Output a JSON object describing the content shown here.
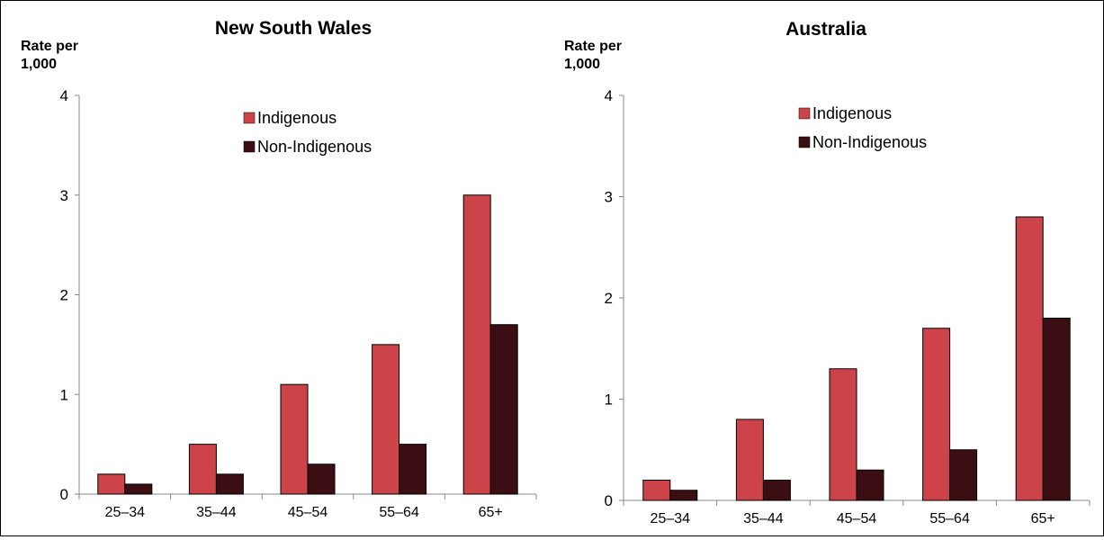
{
  "colors": {
    "indigenous": "#cc4449",
    "non_indigenous": "#3a0e13",
    "axis": "#888888",
    "text": "#000000"
  },
  "chart_data": [
    {
      "type": "bar",
      "title": "New South Wales",
      "ylabel_line1": "Rate per",
      "ylabel_line2": "1,000",
      "xlabel": "",
      "ylim": [
        0,
        4
      ],
      "yticks": [
        "0",
        "1",
        "2",
        "3",
        "4"
      ],
      "categories": [
        "25–34",
        "35–44",
        "45–54",
        "55–64",
        "65+"
      ],
      "legend_position": "upper-center",
      "series": [
        {
          "name": "Indigenous",
          "values": [
            0.2,
            0.5,
            1.1,
            1.5,
            3.0
          ]
        },
        {
          "name": "Non-Indigenous",
          "values": [
            0.1,
            0.2,
            0.3,
            0.5,
            1.7
          ]
        }
      ]
    },
    {
      "type": "bar",
      "title": "Australia",
      "ylabel_line1": "Rate per",
      "ylabel_line2": "1,000",
      "xlabel": "",
      "ylim": [
        0,
        4
      ],
      "yticks": [
        "0",
        "1",
        "2",
        "3",
        "4"
      ],
      "categories": [
        "25–34",
        "35–44",
        "45–54",
        "55–64",
        "65+"
      ],
      "legend_position": "upper-center",
      "series": [
        {
          "name": "Indigenous",
          "values": [
            0.2,
            0.8,
            1.3,
            1.7,
            2.8
          ]
        },
        {
          "name": "Non-Indigenous",
          "values": [
            0.1,
            0.2,
            0.3,
            0.5,
            1.8
          ]
        }
      ]
    }
  ]
}
